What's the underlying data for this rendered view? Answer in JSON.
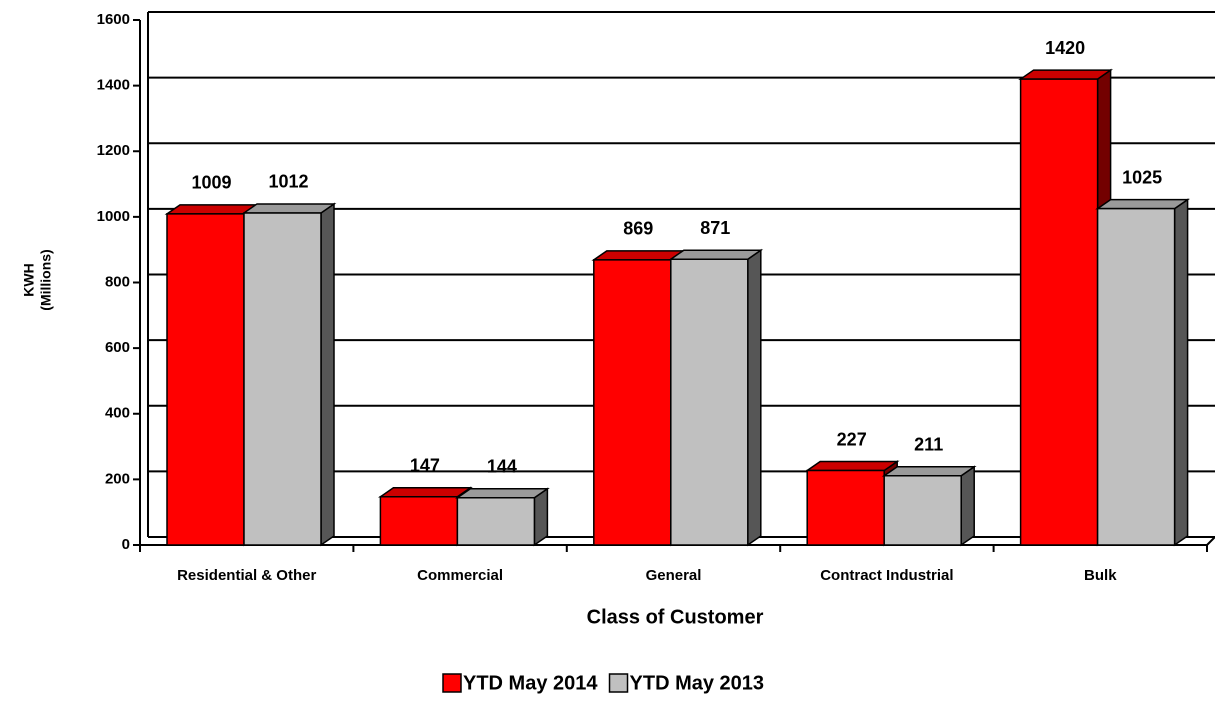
{
  "chart_data": {
    "type": "bar3d",
    "x_label": "Class of Customer",
    "y_label": "KWH",
    "y_label_sub": "(Millions)",
    "categories": [
      "Residential & Other",
      "Commercial",
      "General",
      "Contract Industrial",
      "Bulk"
    ],
    "series": [
      {
        "name": "YTD May 2014",
        "color": "#ff0000",
        "values": [
          1009,
          147,
          869,
          227,
          1420
        ]
      },
      {
        "name": "YTD May 2013",
        "color": "#c0c0c0",
        "values": [
          1012,
          144,
          871,
          211,
          1025
        ]
      }
    ],
    "ylim": [
      0,
      1600
    ],
    "yticks": [
      0,
      200,
      400,
      600,
      800,
      1000,
      1200,
      1400,
      1600
    ],
    "grid": true,
    "legend": "bottom"
  }
}
